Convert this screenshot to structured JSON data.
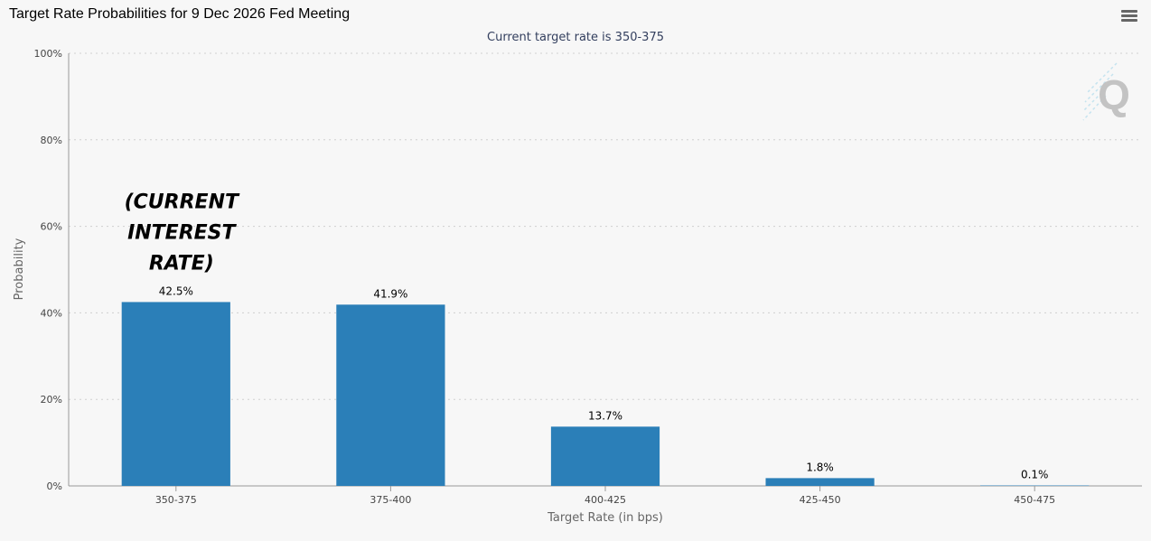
{
  "header": {
    "title": "Target Rate Probabilities for 9 Dec 2026 Fed Meeting",
    "menu_icon": "hamburger-menu-icon"
  },
  "watermark": {
    "letter": "Q",
    "icon": "q-logo-icon"
  },
  "colors": {
    "bar": "#2b7fb8",
    "grid": "#d0d0d0",
    "axis": "#999999",
    "background": "#f7f7f7"
  },
  "chart_data": {
    "type": "bar",
    "title": "Target Rate Probabilities for 9 Dec 2026 Fed Meeting",
    "subtitle": "Current target rate is 350-375",
    "xlabel": "Target Rate (in bps)",
    "ylabel": "Probability",
    "categories": [
      "350-375",
      "375-400",
      "400-425",
      "425-450",
      "450-475"
    ],
    "values": [
      42.5,
      41.9,
      13.7,
      1.8,
      0.1
    ],
    "data_labels": [
      "42.5%",
      "41.9%",
      "13.7%",
      "1.8%",
      "0.1%"
    ],
    "ylim": [
      0,
      100
    ],
    "yticks": [
      0,
      20,
      40,
      60,
      80,
      100
    ],
    "ytick_labels": [
      "0%",
      "20%",
      "40%",
      "60%",
      "80%",
      "100%"
    ],
    "grid": true,
    "legend": false,
    "annotation": {
      "lines": [
        "(CURRENT",
        "INTEREST",
        "RATE)"
      ],
      "category": "350-375"
    }
  }
}
